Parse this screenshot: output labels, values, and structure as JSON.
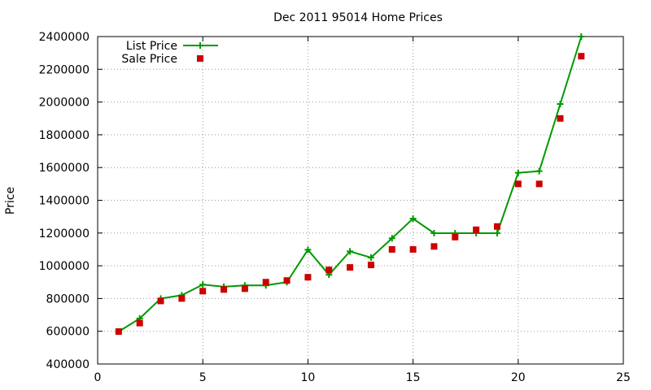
{
  "chart_data": {
    "type": "line",
    "title": "Dec 2011 95014 Home Prices",
    "xlabel": "",
    "ylabel": "Price",
    "xlim": [
      0,
      25
    ],
    "ylim": [
      400000,
      2400000
    ],
    "xticks": [
      0,
      5,
      10,
      15,
      20,
      25
    ],
    "yticks": [
      400000,
      600000,
      800000,
      1000000,
      1200000,
      1400000,
      1600000,
      1800000,
      2000000,
      2200000,
      2400000
    ],
    "grid": true,
    "legend_position": "top-left",
    "series": [
      {
        "name": "List Price",
        "style": "line+cross",
        "color": "#009900",
        "points": [
          [
            1,
            598000
          ],
          [
            2,
            678000
          ],
          [
            3,
            800000
          ],
          [
            4,
            820000
          ],
          [
            5,
            885000
          ],
          [
            6,
            872000
          ],
          [
            7,
            880000
          ],
          [
            8,
            880000
          ],
          [
            9,
            900000
          ],
          [
            10,
            1098000
          ],
          [
            11,
            945000
          ],
          [
            12,
            1088000
          ],
          [
            13,
            1050000
          ],
          [
            14,
            1168000
          ],
          [
            15,
            1288000
          ],
          [
            16,
            1199000
          ],
          [
            17,
            1199000
          ],
          [
            18,
            1199000
          ],
          [
            19,
            1199000
          ],
          [
            20,
            1568000
          ],
          [
            21,
            1578000
          ],
          [
            22,
            1988000
          ],
          [
            23,
            2400000
          ]
        ]
      },
      {
        "name": "Sale Price",
        "style": "square",
        "color": "#cc0000",
        "points": [
          [
            1,
            598000
          ],
          [
            2,
            650000
          ],
          [
            3,
            785000
          ],
          [
            4,
            800000
          ],
          [
            5,
            845000
          ],
          [
            6,
            855000
          ],
          [
            7,
            860000
          ],
          [
            8,
            900000
          ],
          [
            9,
            910000
          ],
          [
            10,
            930000
          ],
          [
            11,
            975000
          ],
          [
            12,
            990000
          ],
          [
            13,
            1005000
          ],
          [
            14,
            1100000
          ],
          [
            15,
            1100000
          ],
          [
            16,
            1118000
          ],
          [
            17,
            1175000
          ],
          [
            18,
            1220000
          ],
          [
            19,
            1240000
          ],
          [
            20,
            1500000
          ],
          [
            21,
            1500000
          ],
          [
            22,
            1900000
          ],
          [
            23,
            2280000
          ]
        ]
      }
    ]
  }
}
